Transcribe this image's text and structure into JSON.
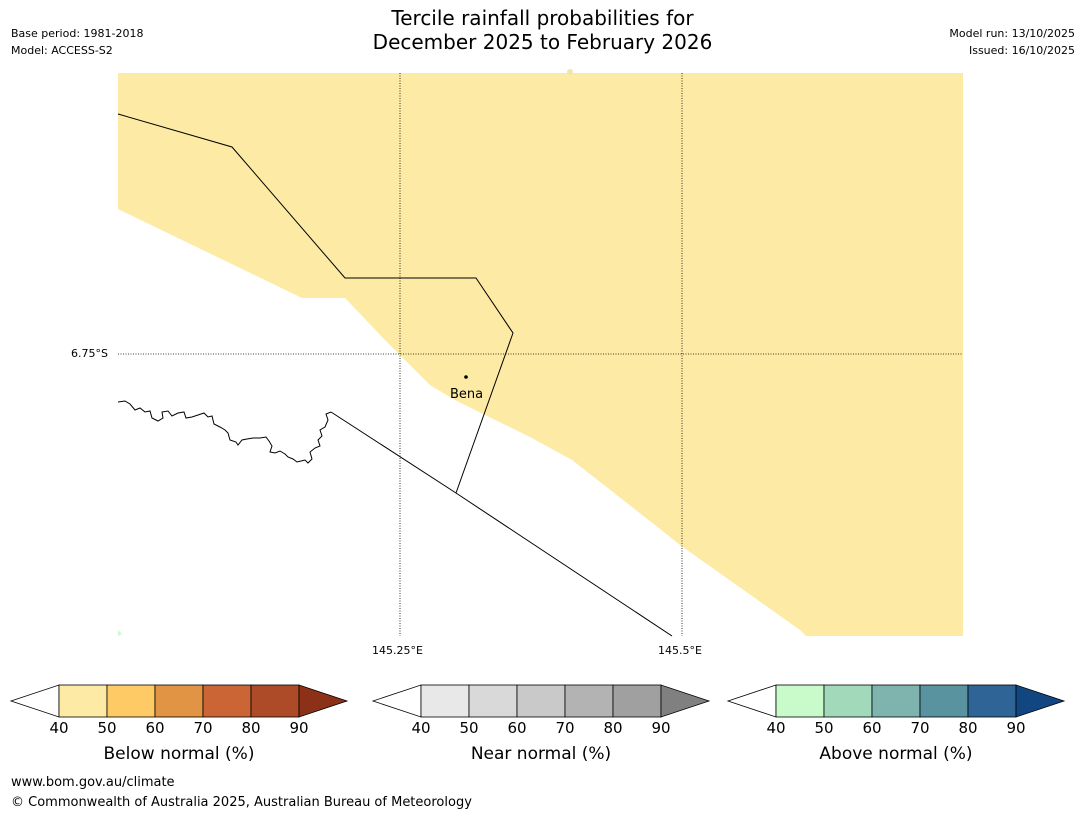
{
  "header": {
    "title_line1": "Tercile rainfall probabilities for",
    "title_line2": "December 2025 to February 2026",
    "base_period": "Base period: 1981-2018",
    "model": "Model: ACCESS-S2",
    "model_run": "Model run: 13/10/2025",
    "issued": "Issued: 16/10/2025"
  },
  "map": {
    "lat_label": "6.75°S",
    "lon_labels": [
      "145.25°E",
      "145.5°E"
    ],
    "place": "Bena",
    "colors": {
      "below_50": "#fdeaa4",
      "border": "#000000",
      "grid": "#000000"
    }
  },
  "legends": [
    {
      "title": "Below normal (%)",
      "ticks": [
        "40",
        "50",
        "60",
        "70",
        "80",
        "90"
      ],
      "colors": [
        "#ffffff",
        "#fdeaa4",
        "#fdca66",
        "#e09444",
        "#cc6535",
        "#ad4b28",
        "#8c3118"
      ]
    },
    {
      "title": "Near normal (%)",
      "ticks": [
        "40",
        "50",
        "60",
        "70",
        "80",
        "90"
      ],
      "colors": [
        "#ffffff",
        "#e8e8e8",
        "#d9d9d9",
        "#c9c9c9",
        "#b3b3b3",
        "#a0a0a0",
        "#808080"
      ]
    },
    {
      "title": "Above normal (%)",
      "ticks": [
        "40",
        "50",
        "60",
        "70",
        "80",
        "90"
      ],
      "colors": [
        "#ffffff",
        "#c9fac9",
        "#a3d9bb",
        "#7fb3ad",
        "#5a93a0",
        "#2f6496",
        "#124680"
      ]
    }
  ],
  "footer": {
    "url": "www.bom.gov.au/climate",
    "copyright": "© Commonwealth of Australia 2025, Australian Bureau of Meteorology"
  }
}
